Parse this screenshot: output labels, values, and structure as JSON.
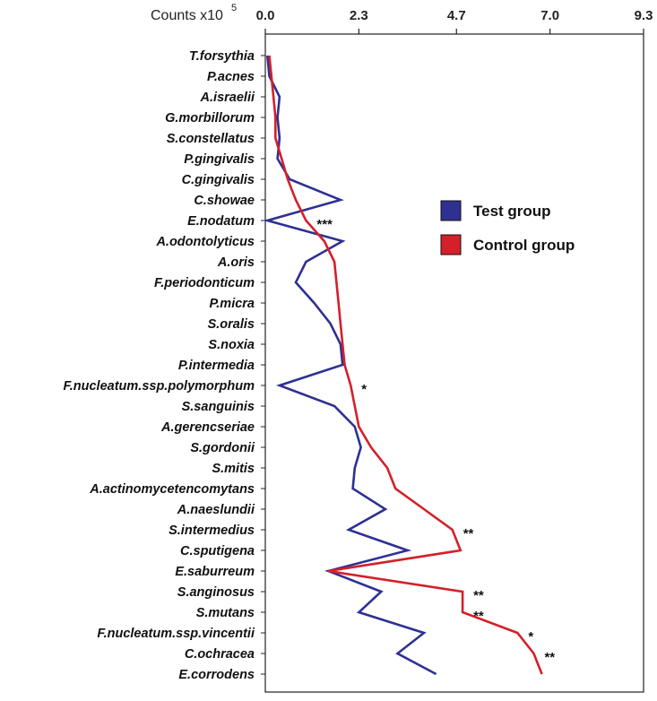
{
  "chart_data": {
    "type": "line",
    "orientation": "horizontal-value-axis",
    "axis": {
      "title": "Counts x10",
      "exponent": "5",
      "position": "top",
      "range": [
        0,
        9.3
      ],
      "ticks": [
        "0.0",
        "2.3",
        "4.7",
        "7.0",
        "9.3"
      ],
      "tick_values": [
        0,
        2.3,
        4.7,
        7.0,
        9.3
      ]
    },
    "categories": [
      "T.forsythia",
      "P.acnes",
      "A.israelii",
      "G.morbillorum",
      "S.constellatus",
      "P.gingivalis",
      "C.gingivalis",
      "C.showae",
      "E.nodatum",
      "A.odontolyticus",
      "A.oris",
      "F.periodonticum",
      "P.micra",
      "S.oralis",
      "S.noxia",
      "P.intermedia",
      "F.nucleatum.ssp.polymorphum",
      "S.sanguinis",
      "A.gerencseriae",
      "S.gordonii",
      "S.mitis",
      "A.actinomycetencomytans",
      "A.naeslundii",
      "S.intermedius",
      "C.sputigena",
      "E.saburreum",
      "S.anginosus",
      "S.mutans",
      "F.nucleatum.ssp.vincentii",
      "C.ochracea",
      "E.corrodens"
    ],
    "series": [
      {
        "name": "Test group",
        "color": "#2e3192",
        "values": [
          0.05,
          0.1,
          0.35,
          0.3,
          0.35,
          0.3,
          0.6,
          1.85,
          0.05,
          1.9,
          1.0,
          0.75,
          1.2,
          1.6,
          1.85,
          1.9,
          0.35,
          1.7,
          2.2,
          2.35,
          2.2,
          2.15,
          2.95,
          2.05,
          3.5,
          1.55,
          2.85,
          2.3,
          3.9,
          3.25,
          4.2
        ]
      },
      {
        "name": "Control group",
        "color": "#d4202a",
        "values": [
          0.1,
          0.15,
          0.2,
          0.25,
          0.25,
          0.4,
          0.55,
          0.75,
          1.0,
          1.45,
          1.7,
          1.75,
          1.8,
          1.85,
          1.9,
          1.95,
          2.1,
          2.2,
          2.3,
          2.6,
          3.0,
          3.2,
          3.9,
          4.6,
          4.8,
          1.55,
          4.85,
          4.85,
          6.2,
          6.6,
          6.8
        ]
      }
    ],
    "annotations": [
      {
        "category": "E.nodatum",
        "text": "***"
      },
      {
        "category": "F.nucleatum.ssp.polymorphum",
        "text": "*"
      },
      {
        "category": "S.intermedius",
        "text": "**"
      },
      {
        "category": "S.anginosus",
        "text": "**"
      },
      {
        "category": "S.mutans",
        "text": "**"
      },
      {
        "category": "F.nucleatum.ssp.vincentii",
        "text": "*"
      },
      {
        "category": "C.ochracea",
        "text": "**"
      }
    ],
    "legend": {
      "placement": "right",
      "entries": [
        "Test group",
        "Control group"
      ]
    },
    "grid": false
  }
}
